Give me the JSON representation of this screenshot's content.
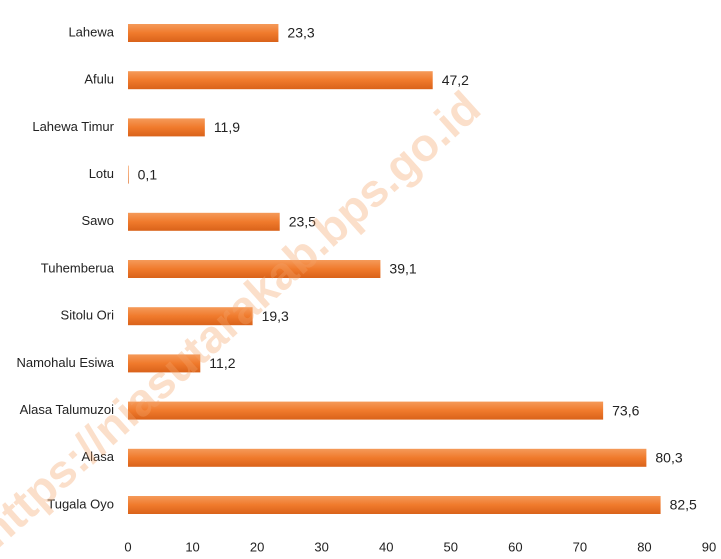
{
  "chart_data": {
    "type": "bar",
    "orientation": "horizontal",
    "categories": [
      "Lahewa",
      "Afulu",
      "Lahewa Timur",
      "Lotu",
      "Sawo",
      "Tuhemberua",
      "Sitolu Ori",
      "Namohalu Esiwa",
      "Alasa Talumuzoi",
      "Alasa",
      "Tugala Oyo"
    ],
    "values": [
      23.3,
      47.2,
      11.9,
      0.1,
      23.5,
      39.1,
      19.3,
      11.2,
      73.6,
      80.3,
      82.5
    ],
    "value_labels": [
      "23,3",
      "47,2",
      "11,9",
      "0,1",
      "23,5",
      "39,1",
      "19,3",
      "11,2",
      "73,6",
      "80,3",
      "82,5"
    ],
    "color": "#f07a2c",
    "xlim": [
      0,
      90
    ],
    "xticks": [
      0,
      10,
      20,
      30,
      40,
      50,
      60,
      70,
      80,
      90
    ],
    "grid": false,
    "watermark": "https://niasutarakab.bps.go.id"
  }
}
